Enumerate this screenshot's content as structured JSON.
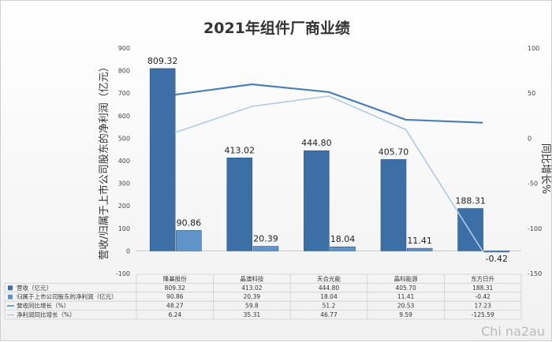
{
  "chart_data": {
    "type": "bar",
    "title": "2021年组件厂商业绩",
    "categories": [
      "隆基股份",
      "晶澳科技",
      "天合光能",
      "晶科能源",
      "东方日升"
    ],
    "ylabel": "营收/归属于上市公司股东的净利润（亿元）",
    "y2label": "同比增长%",
    "ylim": [
      -100,
      900
    ],
    "y_ticks": [
      -100,
      0,
      100,
      200,
      300,
      400,
      500,
      600,
      700,
      800,
      900
    ],
    "y2lim": [
      -150,
      100
    ],
    "y2_ticks": [
      -150,
      -100,
      -50,
      0,
      50,
      100
    ],
    "series": [
      {
        "name": "营收（亿元）",
        "axis": "left",
        "kind": "bar",
        "color": "#3d6fa7",
        "values": [
          809.32,
          413.02,
          444.8,
          405.7,
          188.31
        ],
        "labels": [
          "809.32",
          "413.02",
          "444.80",
          "405.70",
          "188.31"
        ],
        "table": [
          "809.32",
          "413.02",
          "444.80",
          "405.70",
          "188.31"
        ]
      },
      {
        "name": "归属于上市公司股东的净利润（亿元）",
        "axis": "left",
        "kind": "bar",
        "color": "#5f93c9",
        "values": [
          90.86,
          20.39,
          18.04,
          11.41,
          -0.42
        ],
        "labels": [
          "90.86",
          "20.39",
          "18.04",
          "11.41",
          "-0.42"
        ],
        "table": [
          "90.86",
          "20.39",
          "18.04",
          "11.41",
          "-0.42"
        ]
      },
      {
        "name": "营收同比增长（%）",
        "axis": "right",
        "kind": "line",
        "color": "#4a7fb5",
        "values": [
          48.27,
          59.8,
          51.2,
          20.53,
          17.23
        ],
        "table": [
          "48.27",
          "59.8",
          "51.2",
          "20.53",
          "17.23"
        ]
      },
      {
        "name": "净利润同比增长（%）",
        "axis": "right",
        "kind": "line",
        "color": "#b3c9e2",
        "values": [
          6.24,
          35.31,
          46.77,
          9.59,
          -125.59
        ],
        "table": [
          "6.24",
          "35.31",
          "46.77",
          "9.59",
          "-125.59"
        ]
      }
    ],
    "grid": false,
    "legend": "data-table"
  },
  "watermark": "Chi na2au"
}
